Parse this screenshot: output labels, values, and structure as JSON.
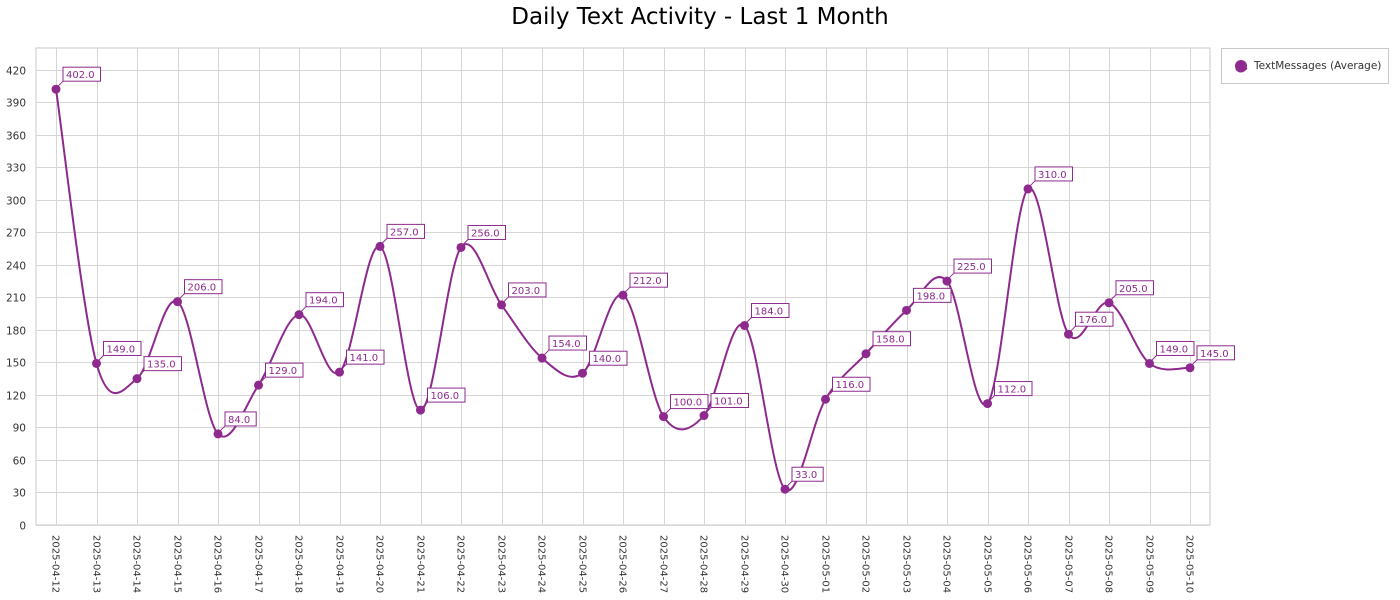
{
  "chart_data": {
    "type": "line",
    "title": "Daily Text Activity - Last 1 Month",
    "xlabel": "",
    "ylabel": "",
    "ylim": [
      0,
      440
    ],
    "yticks": [
      0,
      30,
      60,
      90,
      120,
      150,
      180,
      210,
      240,
      270,
      300,
      330,
      360,
      390,
      420
    ],
    "grid": true,
    "legend_position": "top-right",
    "categories": [
      "2025-04-12",
      "2025-04-13",
      "2025-04-14",
      "2025-04-15",
      "2025-04-16",
      "2025-04-17",
      "2025-04-18",
      "2025-04-19",
      "2025-04-20",
      "2025-04-21",
      "2025-04-22",
      "2025-04-23",
      "2025-04-24",
      "2025-04-25",
      "2025-04-26",
      "2025-04-27",
      "2025-04-28",
      "2025-04-29",
      "2025-04-30",
      "2025-05-01",
      "2025-05-02",
      "2025-05-03",
      "2025-05-04",
      "2025-05-05",
      "2025-05-06",
      "2025-05-07",
      "2025-05-08",
      "2025-05-09",
      "2025-05-10"
    ],
    "series": [
      {
        "name": "TextMessages (Average)",
        "color": "#8e2a8e",
        "values": [
          402,
          149,
          135,
          206,
          84,
          129,
          194,
          141,
          257,
          106,
          256,
          203,
          154,
          140,
          212,
          100,
          101,
          184,
          33,
          116,
          158,
          198,
          225,
          112,
          310,
          176,
          205,
          149,
          145
        ],
        "labels": [
          "402.0",
          "149.0",
          "135.0",
          "206.0",
          "84.0",
          "129.0",
          "194.0",
          "141.0",
          "257.0",
          "106.0",
          "256.0",
          "203.0",
          "154.0",
          "140.0",
          "212.0",
          "100.0",
          "101.0",
          "184.0",
          "33.0",
          "116.0",
          "158.0",
          "198.0",
          "225.0",
          "112.0",
          "310.0",
          "176.0",
          "205.0",
          "149.0",
          "145.0"
        ]
      }
    ]
  }
}
